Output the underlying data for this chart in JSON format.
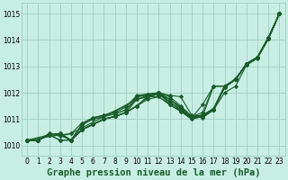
{
  "title": "Graphe pression niveau de la mer (hPa)",
  "bg_color": "#c8eee4",
  "grid_color": "#a0ccc0",
  "line_color": "#1a5c2a",
  "xlim": [
    -0.5,
    23.5
  ],
  "ylim": [
    1009.6,
    1015.4
  ],
  "yticks": [
    1010,
    1011,
    1012,
    1013,
    1014,
    1015
  ],
  "xticks": [
    0,
    1,
    2,
    3,
    4,
    5,
    6,
    7,
    8,
    9,
    10,
    11,
    12,
    13,
    14,
    15,
    16,
    17,
    18,
    19,
    20,
    21,
    22,
    23
  ],
  "lines": [
    {
      "x": [
        0,
        1,
        2,
        3,
        4,
        5,
        6,
        7,
        8,
        9,
        10,
        11,
        12,
        13,
        14,
        15,
        16,
        17,
        18,
        19,
        20,
        21,
        22,
        23
      ],
      "y": [
        1010.2,
        1010.2,
        1010.45,
        1010.4,
        1010.2,
        1010.75,
        1011.05,
        1011.15,
        1011.3,
        1011.5,
        1011.85,
        1011.95,
        1012.0,
        1011.85,
        1011.5,
        1011.1,
        1011.15,
        1011.4,
        1012.25,
        1012.5,
        1013.1,
        1013.35,
        1014.1,
        1015.0
      ]
    },
    {
      "x": [
        0,
        1,
        2,
        3,
        4,
        5,
        6,
        7,
        8,
        9,
        10,
        11,
        12,
        13,
        14,
        15,
        16,
        17,
        18,
        19,
        20,
        21,
        22,
        23
      ],
      "y": [
        1010.2,
        1010.2,
        1010.45,
        1010.35,
        1010.45,
        1010.85,
        1011.05,
        1011.15,
        1011.25,
        1011.45,
        1011.9,
        1011.95,
        1012.0,
        1011.75,
        1011.45,
        1011.1,
        1011.15,
        1011.4,
        1012.25,
        1012.5,
        1013.1,
        1013.35,
        1014.1,
        1015.0
      ]
    },
    {
      "x": [
        0,
        1,
        2,
        3,
        4,
        5,
        6,
        7,
        8,
        9,
        10,
        11,
        12,
        13,
        14,
        15,
        16,
        17,
        18,
        19,
        20,
        21,
        22,
        23
      ],
      "y": [
        1010.2,
        1010.2,
        1010.4,
        1010.2,
        1010.2,
        1010.8,
        1011.0,
        1011.1,
        1011.2,
        1011.35,
        1011.75,
        1011.85,
        1011.95,
        1011.65,
        1011.35,
        1011.05,
        1011.1,
        1011.35,
        1012.25,
        1012.5,
        1013.1,
        1013.35,
        1014.1,
        1015.0
      ]
    },
    {
      "x": [
        0,
        2,
        3,
        4,
        5,
        6,
        7,
        8,
        9,
        10,
        11,
        12,
        13,
        14,
        15,
        16,
        17,
        18,
        19,
        20,
        21,
        22,
        23
      ],
      "y": [
        1010.2,
        1010.4,
        1010.4,
        1010.2,
        1010.6,
        1010.8,
        1011.0,
        1011.1,
        1011.25,
        1011.5,
        1011.85,
        1012.0,
        1011.75,
        1011.4,
        1011.05,
        1011.1,
        1011.35,
        1012.25,
        1012.5,
        1013.1,
        1013.35,
        1014.1,
        1015.0
      ]
    },
    {
      "x": [
        0,
        1,
        2,
        3,
        4,
        5,
        6,
        7,
        8,
        9,
        10,
        11,
        12,
        13,
        14,
        15,
        16,
        17,
        18,
        19,
        20,
        21,
        22,
        23
      ],
      "y": [
        1010.2,
        1010.2,
        1010.4,
        1010.45,
        1010.2,
        1010.6,
        1010.8,
        1011.0,
        1011.1,
        1011.25,
        1011.5,
        1011.85,
        1012.0,
        1011.55,
        1011.3,
        1011.0,
        1011.1,
        1012.25,
        1012.25,
        1012.5,
        1013.1,
        1013.35,
        1014.1,
        1015.0
      ]
    },
    {
      "x": [
        0,
        1,
        2,
        3,
        4,
        5,
        6,
        7,
        8,
        9,
        10,
        11,
        12,
        13,
        14,
        15,
        16,
        17,
        18,
        19,
        20,
        21,
        22,
        23
      ],
      "y": [
        1010.2,
        1010.2,
        1010.4,
        1010.45,
        1010.2,
        1010.6,
        1010.8,
        1011.0,
        1011.1,
        1011.25,
        1011.5,
        1011.75,
        1011.85,
        1011.55,
        1011.3,
        1011.0,
        1011.1,
        1011.35,
        1012.0,
        1012.25,
        1013.05,
        1013.3,
        1014.05,
        1015.0
      ]
    },
    {
      "x": [
        0,
        1,
        2,
        3,
        4,
        5,
        6,
        7,
        8,
        9,
        10,
        11,
        12,
        13,
        14,
        15,
        16,
        17,
        18,
        19,
        20,
        21,
        22,
        23
      ],
      "y": [
        1010.2,
        1010.2,
        1010.4,
        1010.45,
        1010.2,
        1010.6,
        1010.8,
        1011.0,
        1011.1,
        1011.25,
        1011.5,
        1011.85,
        1011.85,
        1011.55,
        1011.3,
        1011.05,
        1011.15,
        1011.35,
        1012.2,
        1012.5,
        1013.1,
        1013.35,
        1014.05,
        1015.0
      ]
    },
    {
      "x": [
        0,
        1,
        2,
        3,
        4,
        5,
        6,
        7,
        8,
        9,
        10,
        11,
        12,
        13,
        14,
        15,
        16,
        17,
        18,
        19,
        20,
        21,
        22,
        23
      ],
      "y": [
        1010.2,
        1010.2,
        1010.4,
        1010.45,
        1010.2,
        1010.6,
        1010.8,
        1011.0,
        1011.1,
        1011.25,
        1011.75,
        1011.85,
        1011.95,
        1011.75,
        1011.45,
        1011.1,
        1011.25,
        1012.25,
        1012.25,
        1012.5,
        1013.05,
        1013.35,
        1014.05,
        1015.0
      ]
    },
    {
      "x": [
        0,
        1,
        2,
        3,
        4,
        5,
        6,
        7,
        8,
        9,
        10,
        11,
        12,
        13,
        14,
        15,
        16,
        17,
        18,
        19,
        20,
        21,
        22,
        23
      ],
      "y": [
        1010.2,
        1010.2,
        1010.4,
        1010.2,
        1010.2,
        1010.6,
        1010.8,
        1011.0,
        1011.1,
        1011.25,
        1011.5,
        1011.85,
        1012.0,
        1011.65,
        1011.35,
        1011.05,
        1011.55,
        1012.25,
        1012.25,
        1012.5,
        1013.1,
        1013.35,
        1014.05,
        1015.0
      ]
    },
    {
      "x": [
        0,
        1,
        2,
        3,
        4,
        10,
        11,
        12,
        13,
        14,
        15,
        16,
        17,
        18,
        19,
        20,
        21,
        22,
        23
      ],
      "y": [
        1010.2,
        1010.2,
        1010.4,
        1010.4,
        1010.45,
        1011.75,
        1011.9,
        1012.0,
        1011.9,
        1011.85,
        1011.15,
        1011.05,
        1011.35,
        1012.2,
        1012.55,
        1013.05,
        1013.35,
        1014.05,
        1015.0
      ]
    },
    {
      "x": [
        0,
        3,
        4,
        5,
        6,
        7,
        8,
        9,
        10,
        11,
        12,
        13,
        14,
        15,
        16,
        17,
        18,
        19,
        20,
        21,
        22,
        23
      ],
      "y": [
        1010.2,
        1010.4,
        1010.2,
        1010.8,
        1011.0,
        1011.1,
        1011.2,
        1011.35,
        1011.85,
        1011.9,
        1011.95,
        1011.65,
        1011.35,
        1011.05,
        1011.15,
        1011.35,
        1012.2,
        1012.5,
        1013.1,
        1013.35,
        1014.05,
        1015.0
      ]
    }
  ],
  "marker": "D",
  "markersize": 2.2,
  "linewidth": 0.8,
  "title_fontsize": 7.5,
  "tick_fontsize": 5.5
}
